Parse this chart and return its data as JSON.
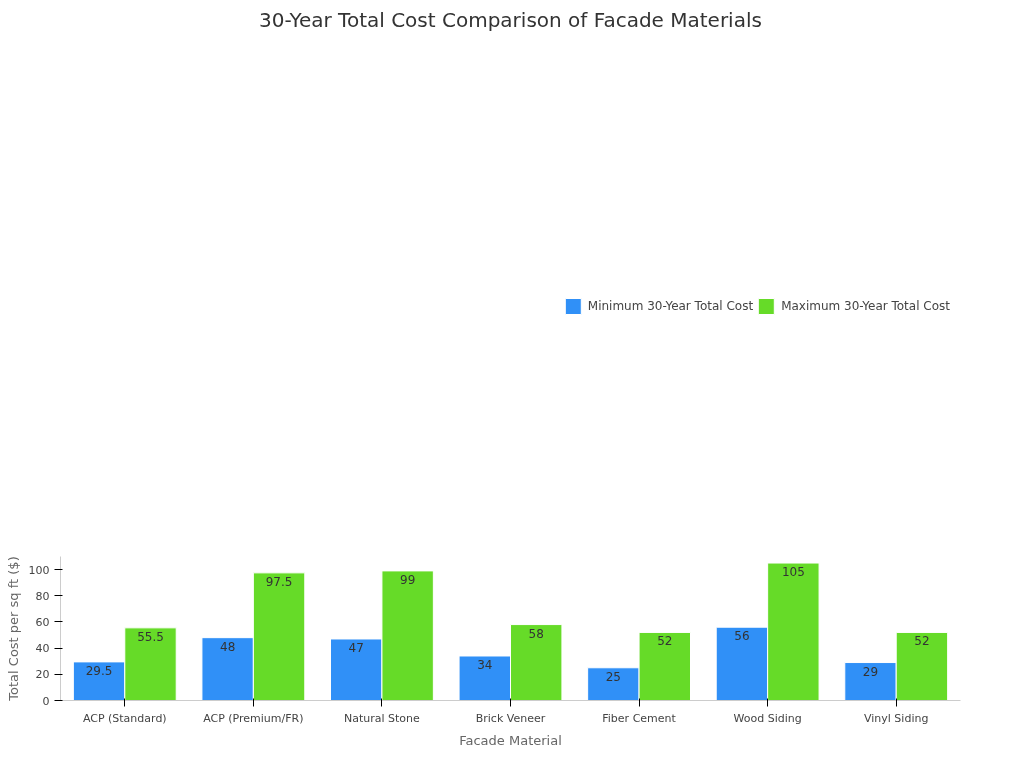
{
  "chart_data": {
    "type": "bar",
    "title": "30-Year Total Cost Comparison of Facade Materials",
    "xlabel": "Facade Material",
    "ylabel": "Total Cost per sq ft ($)",
    "categories": [
      "ACP (Standard)",
      "ACP (Premium/FR)",
      "Natural Stone",
      "Brick Veneer",
      "Fiber Cement",
      "Wood Siding",
      "Vinyl Siding"
    ],
    "series": [
      {
        "name": "Minimum 30-Year Total Cost",
        "color": "#3090f7",
        "values": [
          29.5,
          48,
          47,
          34,
          25,
          56,
          29
        ]
      },
      {
        "name": "Maximum 30-Year Total Cost",
        "color": "#66db28",
        "values": [
          55.5,
          97.5,
          99,
          58,
          52,
          105,
          52
        ]
      }
    ],
    "ylim": [
      0,
      110
    ],
    "yticks": [
      0,
      20,
      40,
      60,
      80,
      100
    ],
    "data_labels": true,
    "legend": "top right",
    "grid": false
  }
}
